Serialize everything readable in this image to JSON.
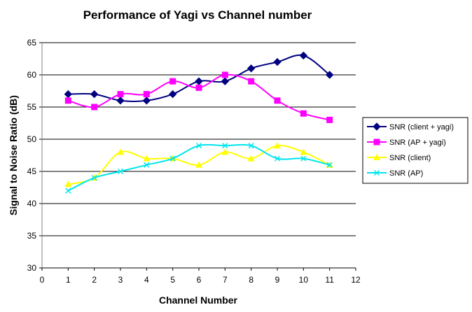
{
  "chart_data": {
    "type": "line",
    "title": "Performance of Yagi vs Channel number",
    "xlabel": "Channel Number",
    "ylabel": "Signal to Noise Ratio (dB)",
    "xlim": [
      0,
      12
    ],
    "ylim": [
      30,
      65
    ],
    "x_ticks": [
      "0",
      "1",
      "2",
      "3",
      "4",
      "5",
      "6",
      "7",
      "8",
      "9",
      "10",
      "11",
      "12"
    ],
    "y_ticks": [
      "30",
      "35",
      "40",
      "45",
      "50",
      "55",
      "60",
      "65"
    ],
    "grid": "horizontal",
    "legend_position": "right",
    "x": [
      1,
      2,
      3,
      4,
      5,
      6,
      7,
      8,
      9,
      10,
      11
    ],
    "series": [
      {
        "name": "SNR (client + yagi)",
        "color": "#000080",
        "marker": "diamond",
        "values": [
          57,
          57,
          56,
          56,
          57,
          59,
          59,
          61,
          62,
          63,
          60
        ]
      },
      {
        "name": "SNR (AP + yagi)",
        "color": "#ff00ff",
        "marker": "square",
        "values": [
          56,
          55,
          57,
          57,
          59,
          58,
          60,
          59,
          56,
          54,
          53
        ]
      },
      {
        "name": "SNR (client)",
        "color": "#ffff00",
        "marker": "triangle",
        "values": [
          43,
          44,
          48,
          47,
          47,
          46,
          48,
          47,
          49,
          48,
          46
        ]
      },
      {
        "name": "SNR (AP)",
        "color": "#00e5ee",
        "marker": "x",
        "values": [
          42,
          44,
          45,
          46,
          47,
          49,
          49,
          49,
          47,
          47,
          46
        ]
      }
    ]
  }
}
